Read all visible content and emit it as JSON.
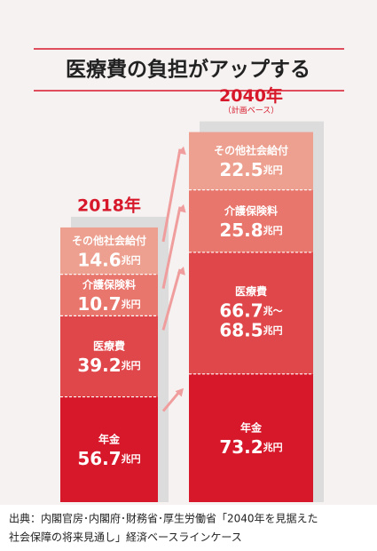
{
  "chart_data": {
    "type": "stacked-bar",
    "title": "医療費の負担がアップする",
    "categories": [
      "2018年",
      "2040年"
    ],
    "category_notes": [
      null,
      "（計画ベース）"
    ],
    "series": [
      {
        "name": "年金",
        "color": "#d7182a",
        "values": [
          56.7,
          73.2
        ],
        "value_labels": [
          "56.7兆円",
          "73.2兆円"
        ]
      },
      {
        "name": "医療費",
        "color": "#e0474a",
        "values": [
          39.2,
          68.5
        ],
        "value_labels": [
          "39.2兆円",
          "66.7兆～68.5兆円"
        ]
      },
      {
        "name": "介護保険料",
        "color": "#e9766d",
        "values": [
          10.7,
          25.8
        ],
        "value_labels": [
          "10.7兆円",
          "25.8兆円"
        ]
      },
      {
        "name": "その他社会給付",
        "color": "#eda08f",
        "values": [
          14.6,
          22.5
        ],
        "value_labels": [
          "14.6兆円",
          "22.5兆円"
        ]
      }
    ],
    "source": [
      "出典：内閣官房･内閣府･財務省･厚生労働省「2040年を見据えた",
      "社会保障の将来見通し」経済ベースラインケース"
    ]
  }
}
